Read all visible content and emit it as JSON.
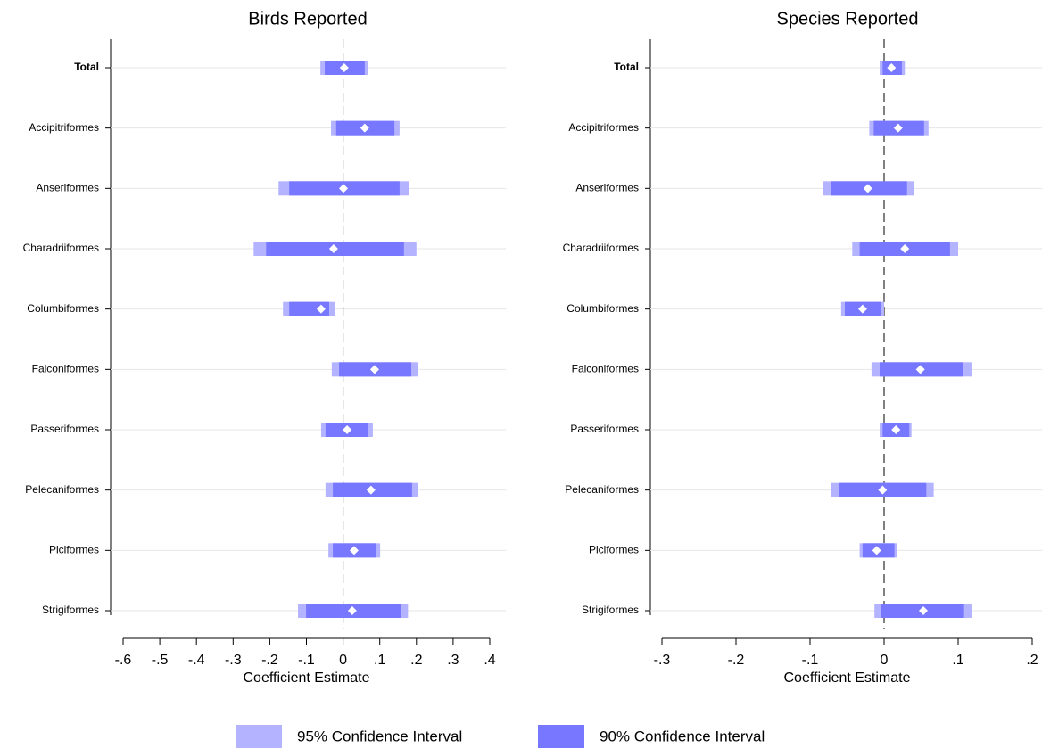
{
  "chart_data": [
    {
      "type": "coefplot",
      "title": "Birds Reported",
      "xlabel": "Coefficient Estimate",
      "categories": [
        "Total",
        "Accipitriformes",
        "Anseriformes",
        "Charadriiformes",
        "Columbiformes",
        "Falconiformes",
        "Passeriformes",
        "Pelecaniformes",
        "Piciformes",
        "Strigiformes"
      ],
      "estimates": [
        0.003,
        0.059,
        0.001,
        -0.026,
        -0.06,
        0.086,
        0.011,
        0.076,
        0.03,
        0.025
      ],
      "ci95": {
        "low": [
          -0.062,
          -0.033,
          -0.176,
          -0.244,
          -0.164,
          -0.031,
          -0.06,
          -0.048,
          -0.04,
          -0.123
        ],
        "high": [
          0.069,
          0.154,
          0.179,
          0.2,
          -0.021,
          0.203,
          0.081,
          0.205,
          0.101,
          0.177
        ]
      },
      "ci90": {
        "low": [
          -0.05,
          -0.019,
          -0.147,
          -0.21,
          -0.147,
          -0.011,
          -0.048,
          -0.028,
          -0.028,
          -0.101
        ],
        "high": [
          0.059,
          0.14,
          0.154,
          0.166,
          -0.038,
          0.186,
          0.069,
          0.188,
          0.091,
          0.157
        ]
      },
      "xlim": [
        -0.6,
        0.4
      ],
      "xticks": [
        {
          "value": -0.6,
          "label": "-.6"
        },
        {
          "value": -0.5,
          "label": "-.5"
        },
        {
          "value": -0.4,
          "label": "-.4"
        },
        {
          "value": -0.3,
          "label": "-.3"
        },
        {
          "value": -0.2,
          "label": "-.2"
        },
        {
          "value": -0.1,
          "label": "-.1"
        },
        0,
        {
          "value": 0.1,
          "label": ".1"
        },
        {
          "value": 0.2,
          "label": ".2"
        },
        {
          "value": 0.3,
          "label": ".3"
        },
        {
          "value": 0.4,
          "label": ".4"
        }
      ],
      "grid": true
    },
    {
      "type": "coefplot",
      "title": "Species Reported",
      "xlabel": "Coefficient Estimate",
      "categories": [
        "Total",
        "Accipitriformes",
        "Anseriformes",
        "Charadriiformes",
        "Columbiformes",
        "Falconiformes",
        "Passeriformes",
        "Pelecaniformes",
        "Piciformes",
        "Strigiformes"
      ],
      "estimates": [
        0.01,
        0.019,
        -0.022,
        0.028,
        -0.029,
        0.049,
        0.016,
        -0.002,
        -0.01,
        0.053
      ],
      "ci95": {
        "low": [
          -0.006,
          -0.02,
          -0.083,
          -0.043,
          -0.058,
          -0.017,
          -0.006,
          -0.072,
          -0.033,
          -0.013
        ],
        "high": [
          0.028,
          0.06,
          0.041,
          0.1,
          0.0,
          0.118,
          0.037,
          0.067,
          0.018,
          0.118
        ]
      },
      "ci90": {
        "low": [
          -0.002,
          -0.014,
          -0.072,
          -0.033,
          -0.053,
          -0.006,
          -0.002,
          -0.061,
          -0.029,
          -0.004
        ],
        "high": [
          0.024,
          0.054,
          0.031,
          0.089,
          -0.004,
          0.107,
          0.034,
          0.057,
          0.014,
          0.108
        ]
      },
      "xlim": [
        -0.3,
        0.2
      ],
      "xticks": [
        {
          "value": -0.3,
          "label": "-.3"
        },
        {
          "value": -0.2,
          "label": "-.2"
        },
        {
          "value": -0.1,
          "label": "-.1"
        },
        0,
        {
          "value": 0.1,
          "label": ".1"
        },
        {
          "value": 0.2,
          "label": ".2"
        }
      ],
      "grid": true
    }
  ],
  "legend": [
    {
      "name": "95% Confidence Interval",
      "color": "#b3b3ff"
    },
    {
      "name": "90% Confidence Interval",
      "color": "#7777ff"
    }
  ]
}
